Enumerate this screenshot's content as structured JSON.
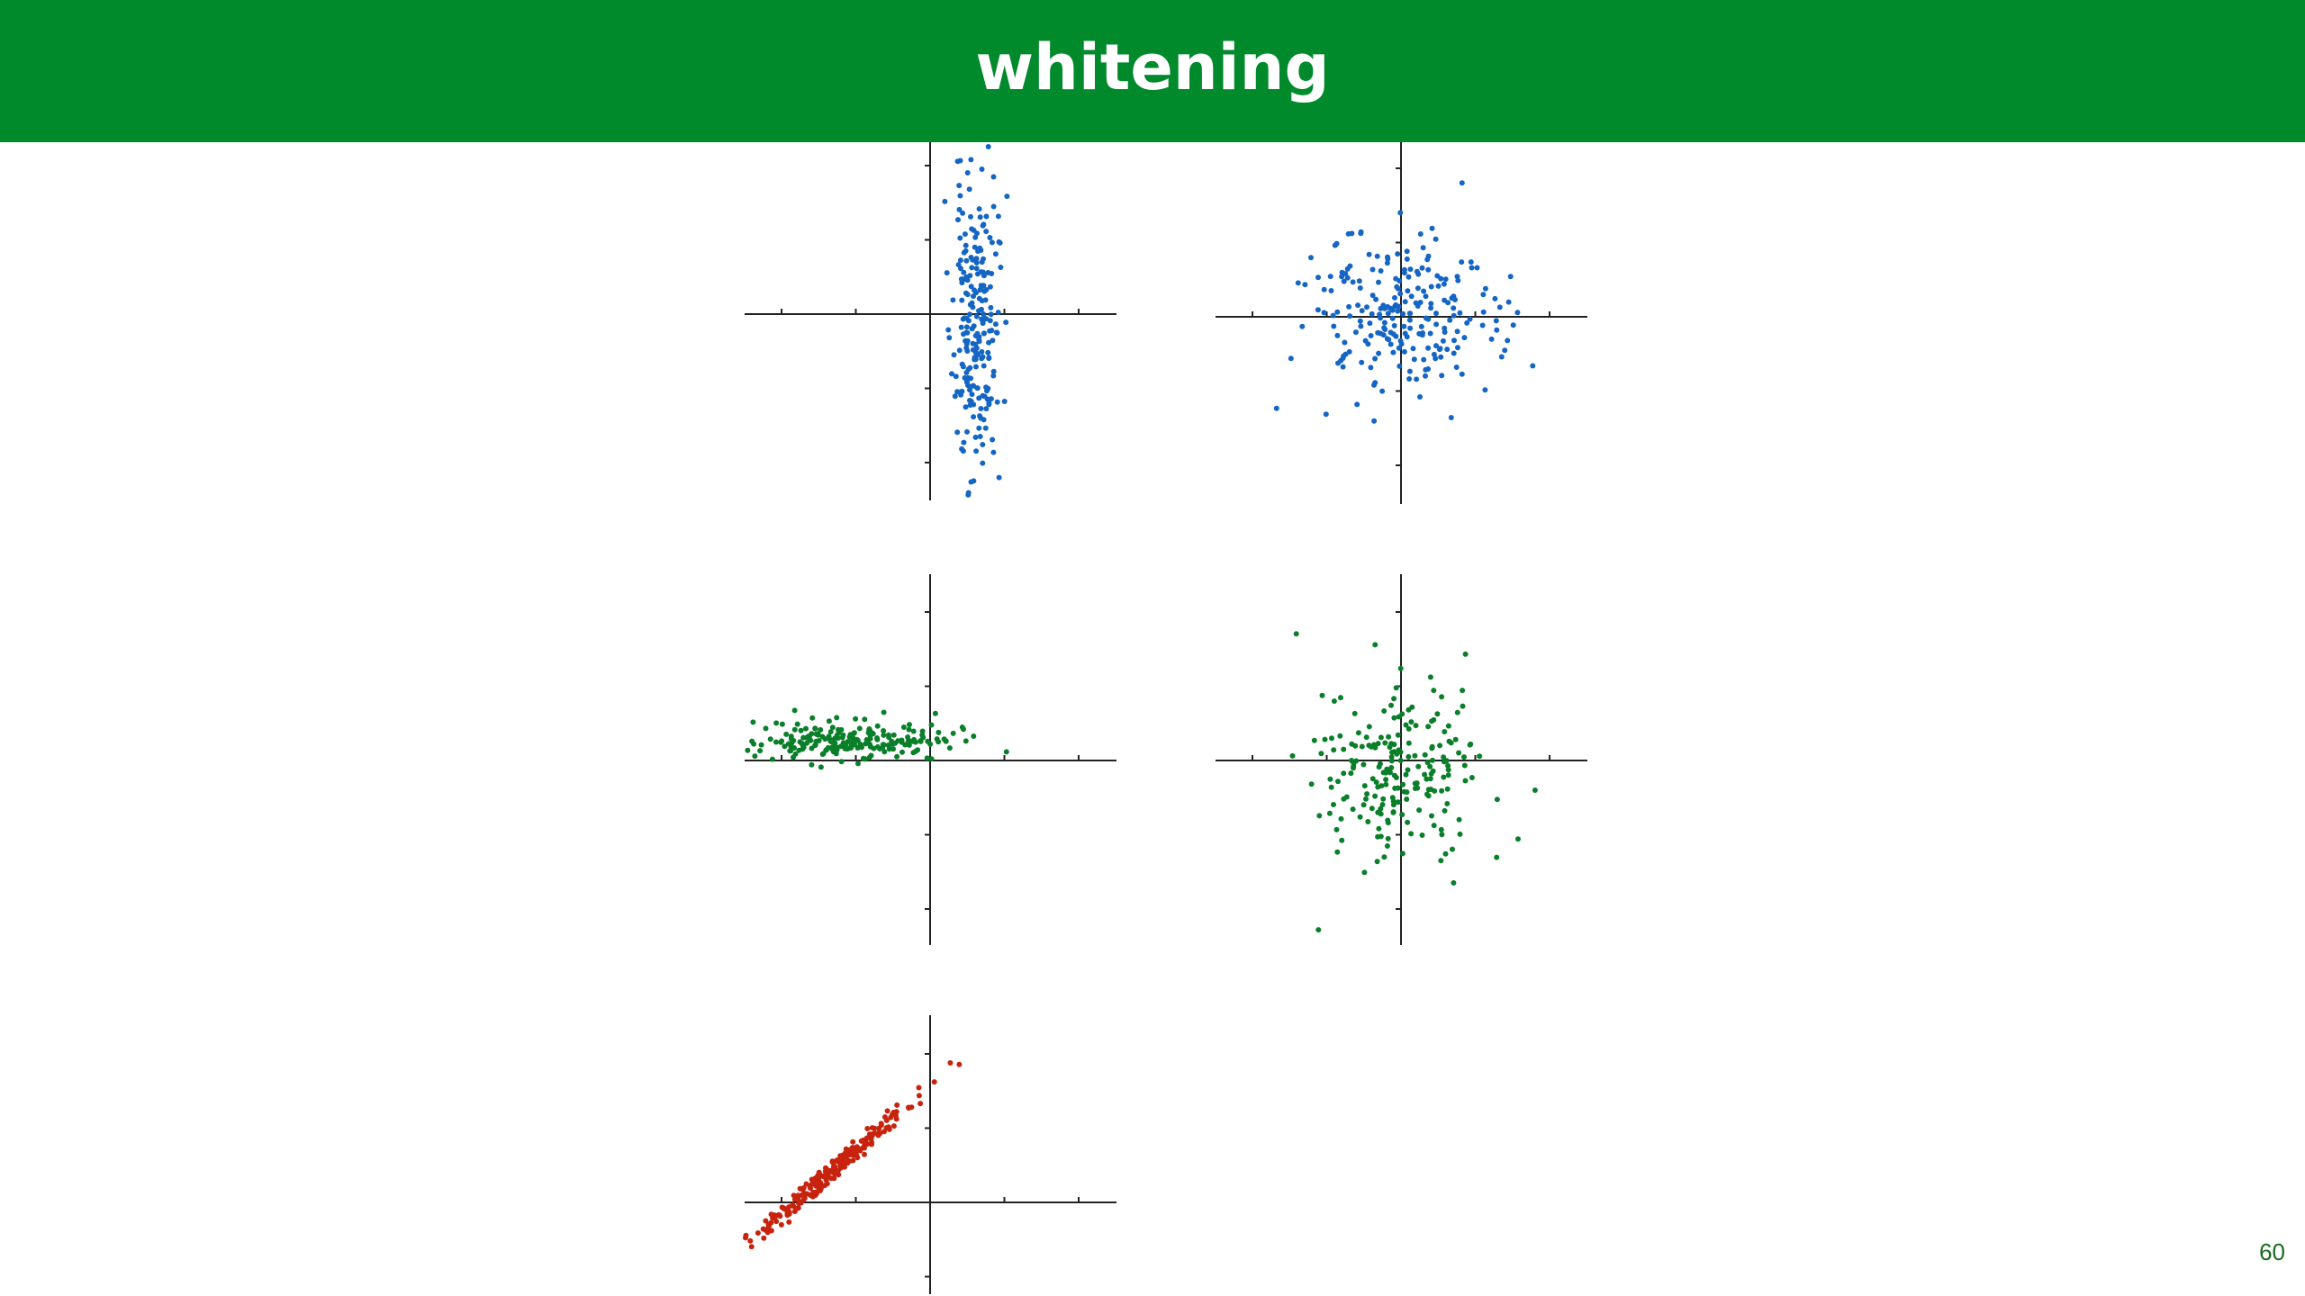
{
  "slide": {
    "title": "whitening",
    "page_number": "60"
  },
  "colors": {
    "header_bg": "#008a2c",
    "blue": "#1566c4",
    "green": "#0a7f2a",
    "red": "#c8230e",
    "axis": "#222222"
  },
  "chart_data": [
    {
      "type": "scatter",
      "id": "top-left",
      "color": "#1566c4",
      "xlim": [
        -2.5,
        2.5
      ],
      "ylim": [
        -2.5,
        2.5
      ],
      "ticks": [
        -2,
        -1,
        1,
        2
      ],
      "grid": false,
      "legend": "none",
      "distribution": {
        "x_mean": 0.6,
        "x_sd": 0.15,
        "y_mean": -0.2,
        "y_sd": 1.0,
        "n": 230,
        "seed": 11
      }
    },
    {
      "type": "scatter",
      "id": "top-right",
      "color": "#1566c4",
      "xlim": [
        -2.5,
        2.5
      ],
      "ylim": [
        -2.5,
        2.5
      ],
      "ticks": [
        -2,
        -1,
        1,
        2
      ],
      "grid": false,
      "legend": "none",
      "distribution": {
        "x_mean": 0.0,
        "x_sd": 0.65,
        "y_mean": 0.0,
        "y_sd": 0.55,
        "n": 230,
        "seed": 23
      }
    },
    {
      "type": "scatter",
      "id": "middle-left",
      "color": "#0a7f2a",
      "xlim": [
        -2.5,
        2.5
      ],
      "ylim": [
        -2.5,
        2.5
      ],
      "ticks": [
        -2,
        -1,
        1,
        2
      ],
      "grid": false,
      "legend": "none",
      "distribution": {
        "x_mean": -1.0,
        "x_sd": 0.7,
        "y_mean": 0.27,
        "y_sd": 0.13,
        "n": 210,
        "seed": 37
      }
    },
    {
      "type": "scatter",
      "id": "middle-right",
      "color": "#0a7f2a",
      "xlim": [
        -2.5,
        2.5
      ],
      "ylim": [
        -2.5,
        2.5
      ],
      "ticks": [
        -2,
        -1,
        1,
        2
      ],
      "grid": false,
      "legend": "none",
      "distribution": {
        "x_mean": 0.0,
        "x_sd": 0.55,
        "y_mean": -0.1,
        "y_sd": 0.65,
        "n": 210,
        "seed": 41
      }
    },
    {
      "type": "scatter",
      "id": "bottom-left",
      "color": "#c8230e",
      "xlim": [
        -2.5,
        2.5
      ],
      "ylim": [
        -1.2,
        2.0
      ],
      "ticks": [
        -2,
        -1,
        1,
        2
      ],
      "yticks": [
        -1,
        1,
        2
      ],
      "grid": false,
      "legend": "none",
      "distribution": {
        "x_mean": -1.4,
        "x_sd": 0.55,
        "slope": 0.85,
        "intercept": 1.55,
        "noise_sd": 0.07,
        "n": 230,
        "seed": 53
      }
    }
  ]
}
